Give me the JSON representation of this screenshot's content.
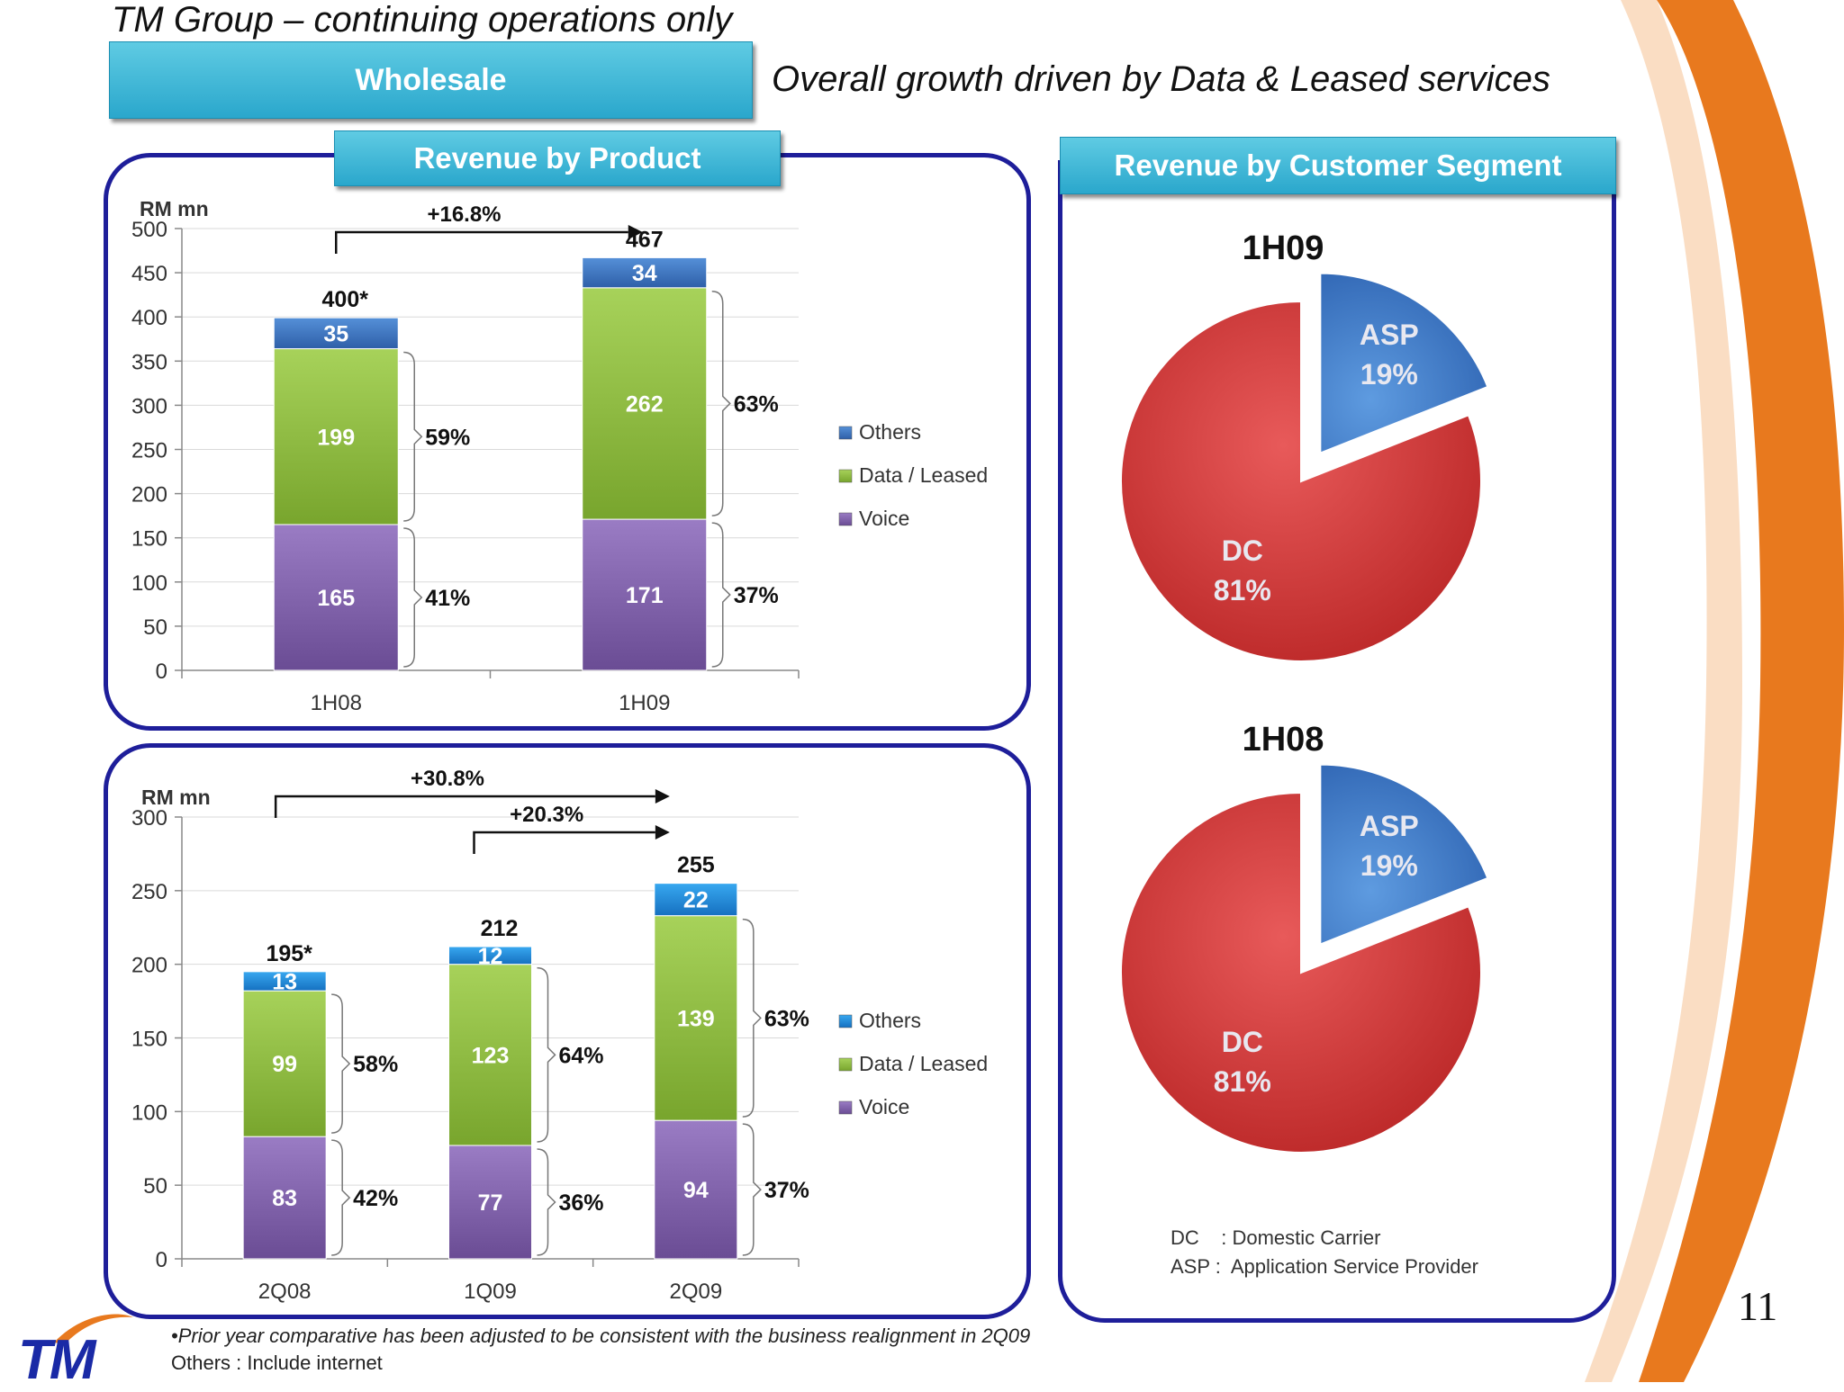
{
  "header": {
    "title": "TM Group – continuing operations only",
    "section": "Wholesale",
    "subtitle": "Overall growth driven by Data & Leased services"
  },
  "panels": {
    "product_title": "Revenue by Product",
    "segment_title": "Revenue by Customer Segment"
  },
  "segment_legend": {
    "dc": "DC    : Domestic Carrier",
    "asp": "ASP :  Application Service Provider"
  },
  "footnotes": {
    "line1": "•Prior year comparative has been adjusted to be consistent with the business realignment in 2Q09",
    "line2": "Others : Include internet"
  },
  "page_number": "11",
  "logo": {
    "text": "TM"
  },
  "colors": {
    "voice": "#8060aa",
    "data": "#8fbd3f",
    "others": "#3d78c4",
    "others_bot": "#1f8fde",
    "dc": "#d23a3a",
    "asp": "#3b78c8",
    "accent_orange": "#e87a1e",
    "frame_blue": "#1e1e9a",
    "pill_blue": "#2aa7cc"
  },
  "chart_data": [
    {
      "type": "bar",
      "stacked": true,
      "ylabel": "RM mn",
      "ylim": [
        0,
        500
      ],
      "yticks": [
        0,
        50,
        100,
        150,
        200,
        250,
        300,
        350,
        400,
        450,
        500
      ],
      "categories": [
        "1H08",
        "1H09"
      ],
      "series": [
        {
          "name": "Voice",
          "values": [
            165,
            171
          ],
          "labels": [
            "165",
            "171"
          ]
        },
        {
          "name": "Data / Leased",
          "values": [
            199,
            262
          ],
          "labels": [
            "199",
            "262"
          ]
        },
        {
          "name": "Others",
          "values": [
            35,
            34
          ],
          "labels": [
            "35",
            "34"
          ]
        }
      ],
      "legend_order": [
        "Others",
        "Data / Leased",
        "Voice"
      ],
      "totals": [
        "400*",
        "467"
      ],
      "share_labels": [
        {
          "voice": "41%",
          "data": "59%"
        },
        {
          "voice": "37%",
          "data": "63%"
        }
      ],
      "growth": [
        {
          "label": "+16.8%",
          "from": 0,
          "to": 1
        }
      ],
      "legend_position": "right"
    },
    {
      "type": "bar",
      "stacked": true,
      "ylabel": "RM mn",
      "ylim": [
        0,
        300
      ],
      "yticks": [
        0,
        50,
        100,
        150,
        200,
        250,
        300
      ],
      "categories": [
        "2Q08",
        "1Q09",
        "2Q09"
      ],
      "series": [
        {
          "name": "Voice",
          "values": [
            83,
            77,
            94
          ],
          "labels": [
            "83",
            "77",
            "94"
          ]
        },
        {
          "name": "Data / Leased",
          "values": [
            99,
            123,
            139
          ],
          "labels": [
            "99",
            "123",
            "139"
          ]
        },
        {
          "name": "Others",
          "values": [
            13,
            12,
            22
          ],
          "labels": [
            "13",
            "12",
            "22"
          ]
        }
      ],
      "legend_order": [
        "Others",
        "Data / Leased",
        "Voice"
      ],
      "totals": [
        "195*",
        "212",
        "255"
      ],
      "share_labels": [
        {
          "voice": "42%",
          "data": "58%"
        },
        {
          "voice": "36%",
          "data": "64%"
        },
        {
          "voice": "37%",
          "data": "63%"
        }
      ],
      "growth": [
        {
          "label": "+30.8%",
          "from": 0,
          "to": 2
        },
        {
          "label": "+20.3%",
          "from": 1,
          "to": 2
        }
      ],
      "legend_position": "right"
    },
    {
      "type": "pie",
      "title": "1H09",
      "slices": [
        {
          "name": "DC",
          "value": 81,
          "label": "81%"
        },
        {
          "name": "ASP",
          "value": 19,
          "label": "19%"
        }
      ]
    },
    {
      "type": "pie",
      "title": "1H08",
      "slices": [
        {
          "name": "DC",
          "value": 81,
          "label": "81%"
        },
        {
          "name": "ASP",
          "value": 19,
          "label": "19%"
        }
      ]
    }
  ]
}
